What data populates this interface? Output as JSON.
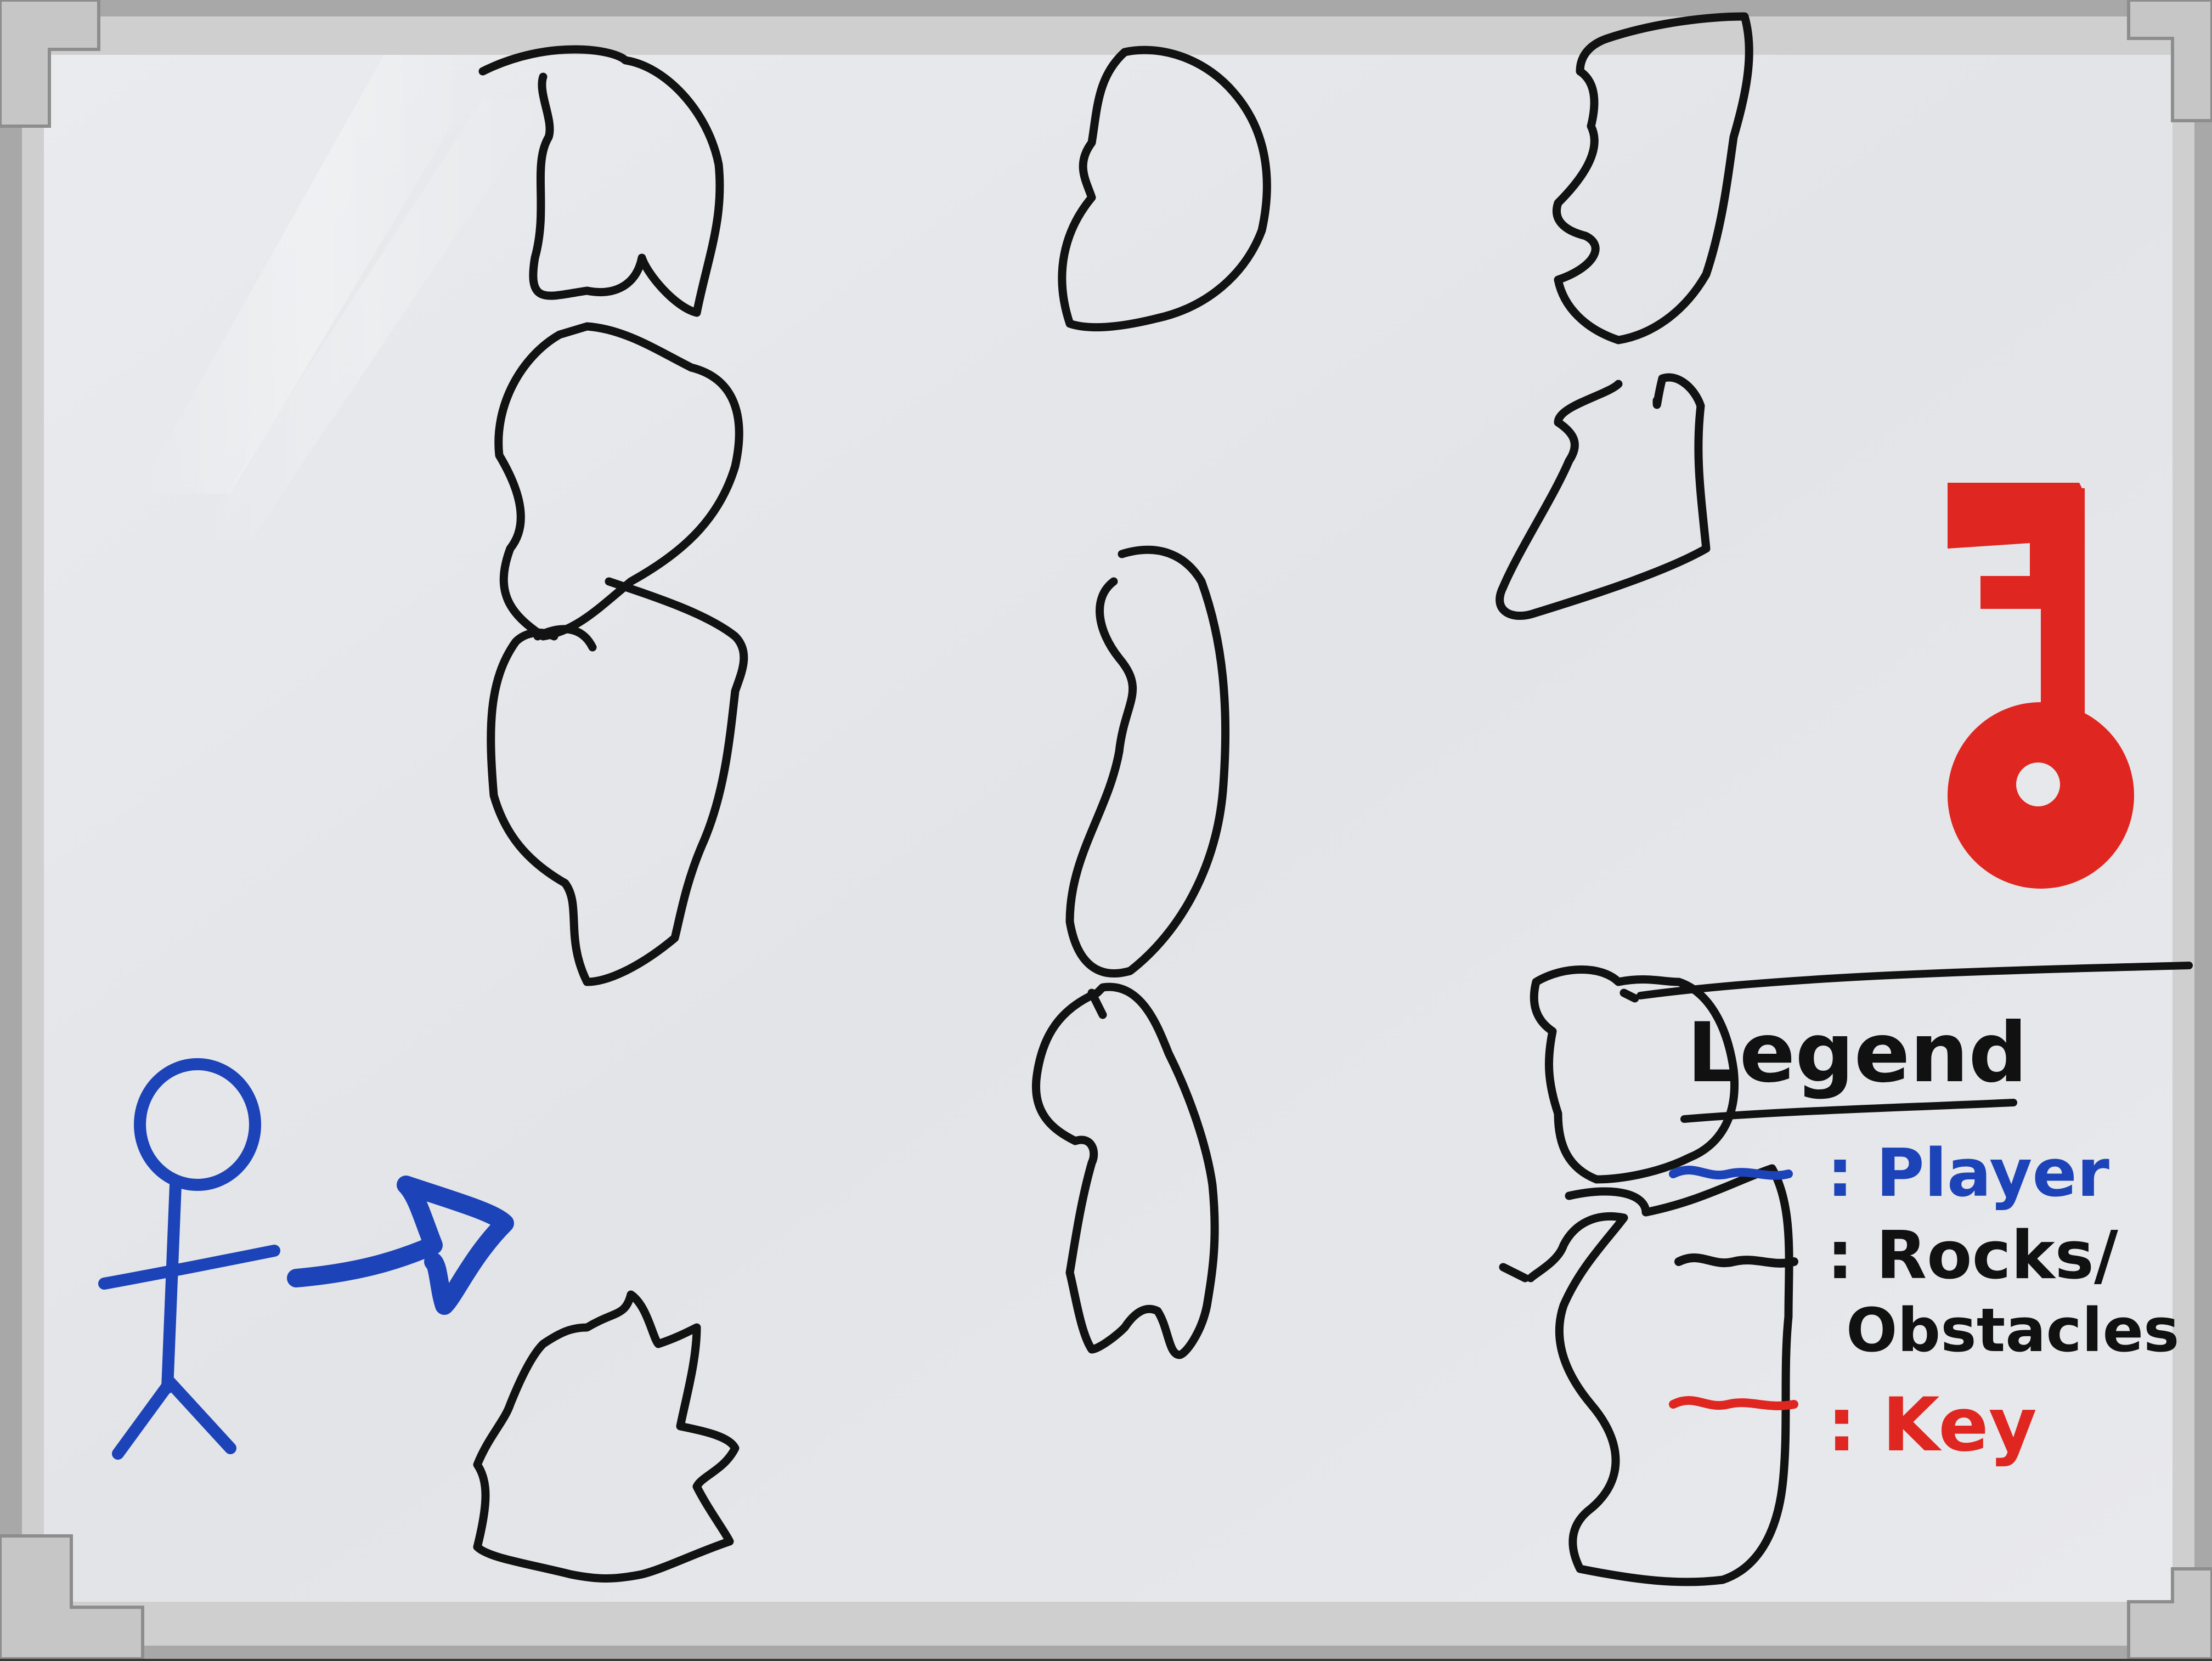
{
  "board": {
    "frame_color": "#b9b9b9",
    "surface_color": "#e5e7ea",
    "marker_black": "#121212",
    "marker_blue": "#1c43b8",
    "marker_red": "#e02620"
  },
  "drawing": {
    "player": {
      "icon": "stick-figure-player-icon",
      "arrow_icon": "blue-arrow-right-icon"
    },
    "key": {
      "icon": "red-key-icon"
    },
    "rocks": {
      "icon": "rock-obstacle-icon",
      "count": 12
    }
  },
  "legend": {
    "title": "Legend",
    "items": [
      {
        "label": ": Player",
        "color": "#1c43b8"
      },
      {
        "label": ": Rocks/",
        "color": "#121212"
      },
      {
        "label": "Obstacles",
        "color": "#121212"
      },
      {
        "label": ": Key",
        "color": "#e02620"
      }
    ]
  }
}
